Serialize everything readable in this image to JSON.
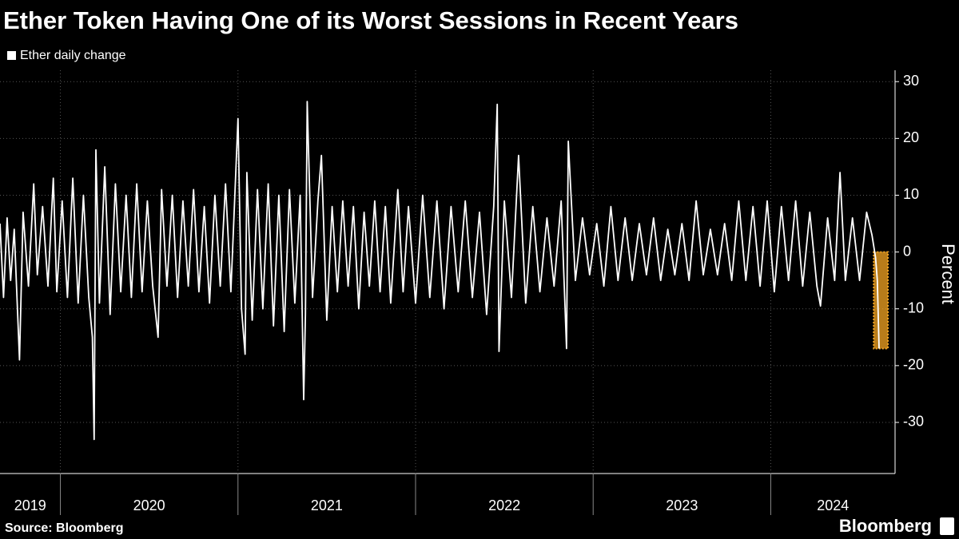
{
  "chart_data": {
    "type": "line",
    "title": "Ether Token Having One of its Worst Sessions in Recent Years",
    "y_label": "Percent",
    "source": "Source: Bloomberg",
    "brand": "Bloomberg",
    "x": [
      2019.66,
      2019.68,
      2019.7,
      2019.72,
      2019.74,
      2019.77,
      2019.79,
      2019.82,
      2019.85,
      2019.87,
      2019.9,
      2019.93,
      2019.96,
      2019.98,
      2020.01,
      2020.04,
      2020.07,
      2020.1,
      2020.13,
      2020.16,
      2020.18,
      2020.19,
      2020.2,
      2020.22,
      2020.25,
      2020.28,
      2020.31,
      2020.34,
      2020.37,
      2020.4,
      2020.43,
      2020.46,
      2020.49,
      2020.52,
      2020.55,
      2020.57,
      2020.6,
      2020.63,
      2020.66,
      2020.69,
      2020.72,
      2020.75,
      2020.78,
      2020.81,
      2020.84,
      2020.87,
      2020.9,
      2020.93,
      2020.96,
      2021.0,
      2021.02,
      2021.04,
      2021.05,
      2021.08,
      2021.11,
      2021.14,
      2021.17,
      2021.2,
      2021.23,
      2021.26,
      2021.29,
      2021.32,
      2021.35,
      2021.37,
      2021.38,
      2021.39,
      2021.42,
      2021.45,
      2021.47,
      2021.5,
      2021.53,
      2021.56,
      2021.59,
      2021.62,
      2021.65,
      2021.68,
      2021.71,
      2021.74,
      2021.77,
      2021.8,
      2021.83,
      2021.86,
      2021.9,
      2021.93,
      2021.96,
      2022.0,
      2022.04,
      2022.08,
      2022.12,
      2022.16,
      2022.2,
      2022.24,
      2022.28,
      2022.32,
      2022.36,
      2022.4,
      2022.44,
      2022.46,
      2022.47,
      2022.5,
      2022.54,
      2022.58,
      2022.62,
      2022.66,
      2022.7,
      2022.74,
      2022.78,
      2022.82,
      2022.85,
      2022.86,
      2022.9,
      2022.94,
      2022.98,
      2023.02,
      2023.06,
      2023.1,
      2023.14,
      2023.18,
      2023.22,
      2023.26,
      2023.3,
      2023.34,
      2023.38,
      2023.42,
      2023.46,
      2023.5,
      2023.54,
      2023.58,
      2023.62,
      2023.66,
      2023.7,
      2023.74,
      2023.78,
      2023.82,
      2023.86,
      2023.9,
      2023.94,
      2023.98,
      2024.02,
      2024.06,
      2024.1,
      2024.14,
      2024.18,
      2024.22,
      2024.26,
      2024.28,
      2024.32,
      2024.36,
      2024.39,
      2024.42,
      2024.46,
      2024.5,
      2024.54,
      2024.57,
      2024.59,
      2024.6,
      2024.61
    ],
    "series": [
      {
        "name": "Ether daily change",
        "color": "#ffffff",
        "values": [
          5,
          -8,
          6,
          -5,
          4,
          -19,
          7,
          -6,
          12,
          -4,
          8,
          -6,
          13,
          -7,
          9,
          -8,
          13,
          -9,
          10,
          -8,
          -15,
          -33,
          18,
          -9,
          15,
          -11,
          12,
          -7,
          10,
          -8,
          12,
          -7,
          9,
          -6,
          -15,
          11,
          -6,
          10,
          -8,
          9,
          -6,
          11,
          -7,
          8,
          -9,
          10,
          -6,
          12,
          -7,
          23.5,
          -10,
          -18,
          14,
          -12,
          11,
          -10,
          12,
          -13,
          10,
          -14,
          11,
          -9,
          10,
          -26,
          -11,
          26.5,
          -8,
          9,
          17,
          -12,
          8,
          -7,
          9,
          -6,
          8,
          -10,
          7,
          -6,
          9,
          -7,
          8,
          -9,
          11,
          -7,
          8,
          -9,
          10,
          -8,
          9,
          -10,
          8,
          -7,
          9,
          -8,
          7,
          -11,
          8,
          26,
          -17.5,
          9,
          -8,
          17,
          -9,
          8,
          -7,
          6,
          -6,
          9,
          -17,
          19.5,
          -5,
          6,
          -4,
          5,
          -6,
          8,
          -5,
          6,
          -5,
          5,
          -4,
          6,
          -5,
          4,
          -4,
          5,
          -5,
          9,
          -4,
          4,
          -4,
          5,
          -5,
          9,
          -5,
          8,
          -6,
          9,
          -7,
          8,
          -5,
          9,
          -6,
          7,
          -6,
          -9.5,
          6,
          -5,
          14,
          -5,
          6,
          -5,
          7,
          3,
          -1,
          -5,
          -17
        ]
      }
    ],
    "highlight": {
      "x": [
        2024.58,
        2024.66
      ],
      "y": [
        -17,
        0
      ],
      "color": "#f5a623"
    },
    "xlim": [
      2019.66,
      2024.7
    ],
    "xticks": [
      2020,
      2021,
      2022,
      2023,
      2024
    ],
    "year_labels": [
      "2019",
      "2020",
      "2021",
      "2022",
      "2023",
      "2024"
    ],
    "ylim": [
      -39,
      32
    ],
    "yticks": [
      -30,
      -20,
      -10,
      0,
      10,
      20,
      30
    ],
    "grid": true
  }
}
